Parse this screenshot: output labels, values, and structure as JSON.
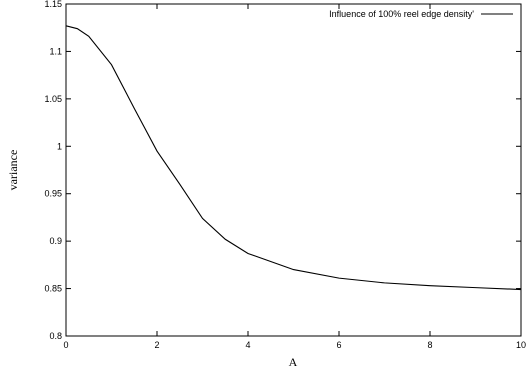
{
  "chart_data": {
    "type": "line",
    "title": "",
    "xlabel": "A",
    "ylabel": "variance",
    "xlim": [
      0,
      10
    ],
    "ylim": [
      0.8,
      1.15
    ],
    "xticks": [
      0,
      2,
      4,
      6,
      8,
      10
    ],
    "yticks": [
      0.8,
      0.85,
      0.9,
      0.95,
      1,
      1.05,
      1.1,
      1.15
    ],
    "xtick_labels": [
      "0",
      "2",
      "4",
      "6",
      "8",
      "10"
    ],
    "ytick_labels": [
      "0.8",
      "0.85",
      "0.9",
      "0.95",
      "1",
      "1.05",
      "1.1",
      "1.15"
    ],
    "grid": false,
    "legend_position": "top-right",
    "series": [
      {
        "name": "Influence of 100% reel edge density'",
        "color": "#000000",
        "x": [
          0,
          0.25,
          0.5,
          1,
          1.5,
          2,
          2.5,
          3,
          3.5,
          4,
          5,
          6,
          7,
          8,
          9,
          10
        ],
        "y": [
          1.127,
          1.124,
          1.116,
          1.086,
          1.04,
          0.995,
          0.96,
          0.924,
          0.902,
          0.887,
          0.87,
          0.861,
          0.856,
          0.853,
          0.851,
          0.849
        ]
      }
    ]
  }
}
